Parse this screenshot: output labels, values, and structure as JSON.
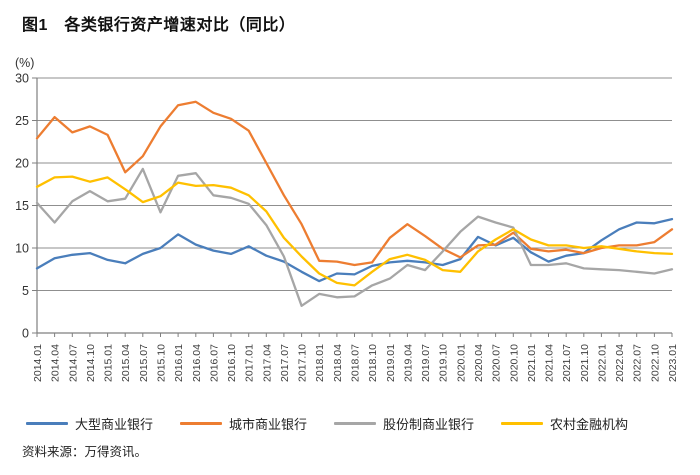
{
  "header": {
    "title": "图1　各类银行资产增速对比（同比）"
  },
  "footer": {
    "source": "资料来源：万得资讯。"
  },
  "chart_data": {
    "type": "line",
    "title": "图1　各类银行资产增速对比（同比）",
    "unit_label": "(%)",
    "xlabel": "",
    "ylabel": "(%)",
    "ylim": [
      0,
      30
    ],
    "yticks": [
      0,
      5,
      10,
      15,
      20,
      25,
      30
    ],
    "grid": "horizontal",
    "legend_position": "bottom",
    "x_tick_rotation": -90,
    "categories": [
      "2014.01",
      "2014.04",
      "2014.07",
      "2014.10",
      "2015.01",
      "2015.04",
      "2015.07",
      "2015.10",
      "2016.01",
      "2016.04",
      "2016.07",
      "2016.10",
      "2017.01",
      "2017.04",
      "2017.07",
      "2017.10",
      "2018.01",
      "2018.04",
      "2018.07",
      "2018.10",
      "2019.01",
      "2019.04",
      "2019.07",
      "2019.10",
      "2020.01",
      "2020.04",
      "2020.07",
      "2020.10",
      "2021.01",
      "2021.04",
      "2021.07",
      "2021.10",
      "2022.01",
      "2022.04",
      "2022.07",
      "2022.10",
      "2023.01"
    ],
    "series": [
      {
        "name": "大型商业银行",
        "color": "#4a7ebb",
        "values": [
          7.6,
          8.8,
          9.2,
          9.4,
          8.6,
          8.2,
          9.3,
          10.0,
          11.6,
          10.4,
          9.7,
          9.3,
          10.2,
          9.1,
          8.4,
          7.2,
          6.1,
          7.0,
          6.9,
          7.9,
          8.3,
          8.5,
          8.3,
          8.0,
          8.7,
          11.3,
          10.3,
          11.2,
          9.5,
          8.4,
          9.1,
          9.4,
          10.9,
          12.2,
          13.0,
          12.9,
          13.4
        ]
      },
      {
        "name": "城市商业银行",
        "color": "#ed7d31",
        "values": [
          22.9,
          25.4,
          23.6,
          24.3,
          23.3,
          18.9,
          20.8,
          24.3,
          26.8,
          27.2,
          25.9,
          25.2,
          23.8,
          20.0,
          16.2,
          12.8,
          8.5,
          8.4,
          8.0,
          8.3,
          11.2,
          12.8,
          11.4,
          9.9,
          8.9,
          10.3,
          10.4,
          11.8,
          9.9,
          9.6,
          9.8,
          9.4,
          10.0,
          10.3,
          10.3,
          10.7,
          12.2
        ]
      },
      {
        "name": "股份制商业银行",
        "color": "#a6a6a6",
        "values": [
          15.3,
          13.0,
          15.5,
          16.7,
          15.5,
          15.8,
          19.3,
          14.2,
          18.5,
          18.8,
          16.2,
          15.9,
          15.2,
          12.7,
          9.0,
          3.2,
          4.6,
          4.2,
          4.3,
          5.6,
          6.4,
          8.0,
          7.4,
          9.6,
          11.9,
          13.7,
          13.0,
          12.4,
          8.0,
          8.0,
          8.2,
          7.6,
          7.5,
          7.4,
          7.2,
          7.0,
          7.5
        ]
      },
      {
        "name": "农村金融机构",
        "color": "#ffc000",
        "values": [
          17.2,
          18.3,
          18.4,
          17.8,
          18.3,
          16.9,
          15.4,
          16.1,
          17.7,
          17.3,
          17.4,
          17.1,
          16.2,
          14.3,
          11.2,
          9.0,
          7.0,
          5.9,
          5.6,
          7.2,
          8.7,
          9.2,
          8.6,
          7.4,
          7.2,
          9.6,
          11.0,
          12.2,
          11.0,
          10.3,
          10.3,
          10.0,
          10.2,
          9.9,
          9.6,
          9.4,
          9.3
        ]
      }
    ]
  }
}
